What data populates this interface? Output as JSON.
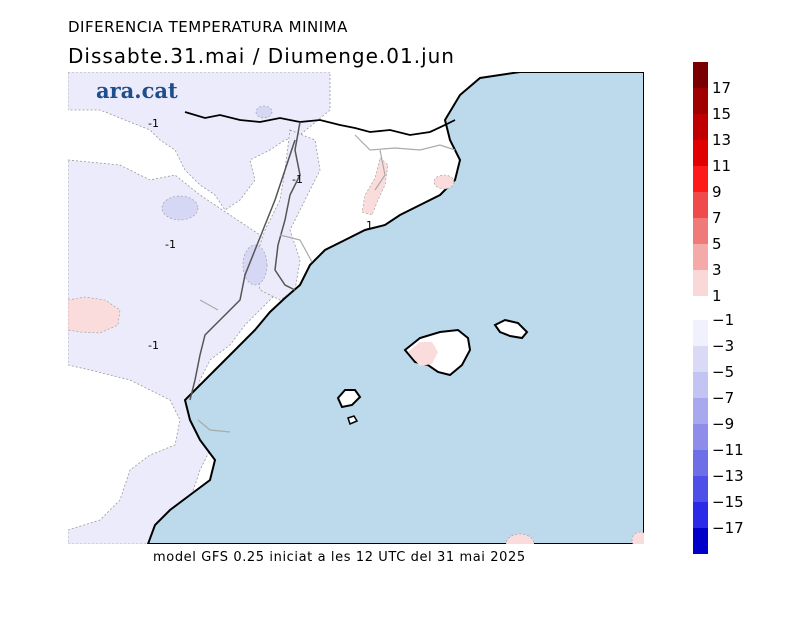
{
  "header": {
    "title": "DIFERENCIA TEMPERATURA MINIMA",
    "subtitle": "Dissabte.31.mai / Diumenge.01.jun"
  },
  "logo": {
    "text": "ara.cat"
  },
  "footer": {
    "text": "model GFS 0.25 iniciat a les 12 UTC del 31 mai 2025"
  },
  "map": {
    "contour_labels": [
      "-1",
      "-1",
      "-1",
      "-1",
      "1"
    ]
  },
  "colorbar": {
    "positive": {
      "labels": [
        "17",
        "15",
        "13",
        "11",
        "9",
        "7",
        "5",
        "3",
        "1"
      ],
      "colors": [
        "#7a0000",
        "#a00000",
        "#c00000",
        "#e00000",
        "#ff1a1a",
        "#f04a4a",
        "#f07a7a",
        "#f5aaaa",
        "#fad8d8"
      ]
    },
    "negative": {
      "labels": [
        "-1",
        "-3",
        "-5",
        "-7",
        "-9",
        "-11",
        "-13",
        "-15",
        "-17"
      ],
      "colors": [
        "#f1f1fd",
        "#dadaf7",
        "#c4c4f2",
        "#a8a8ee",
        "#8e8eea",
        "#6e6ee6",
        "#4e4ee8",
        "#2a2ae8",
        "#0000c8"
      ]
    }
  },
  "colors": {
    "sea": "#bcdaeb",
    "land": "#ffffff",
    "cool_tint": "#ecebfb",
    "warm_tint": "#fadcdc"
  }
}
